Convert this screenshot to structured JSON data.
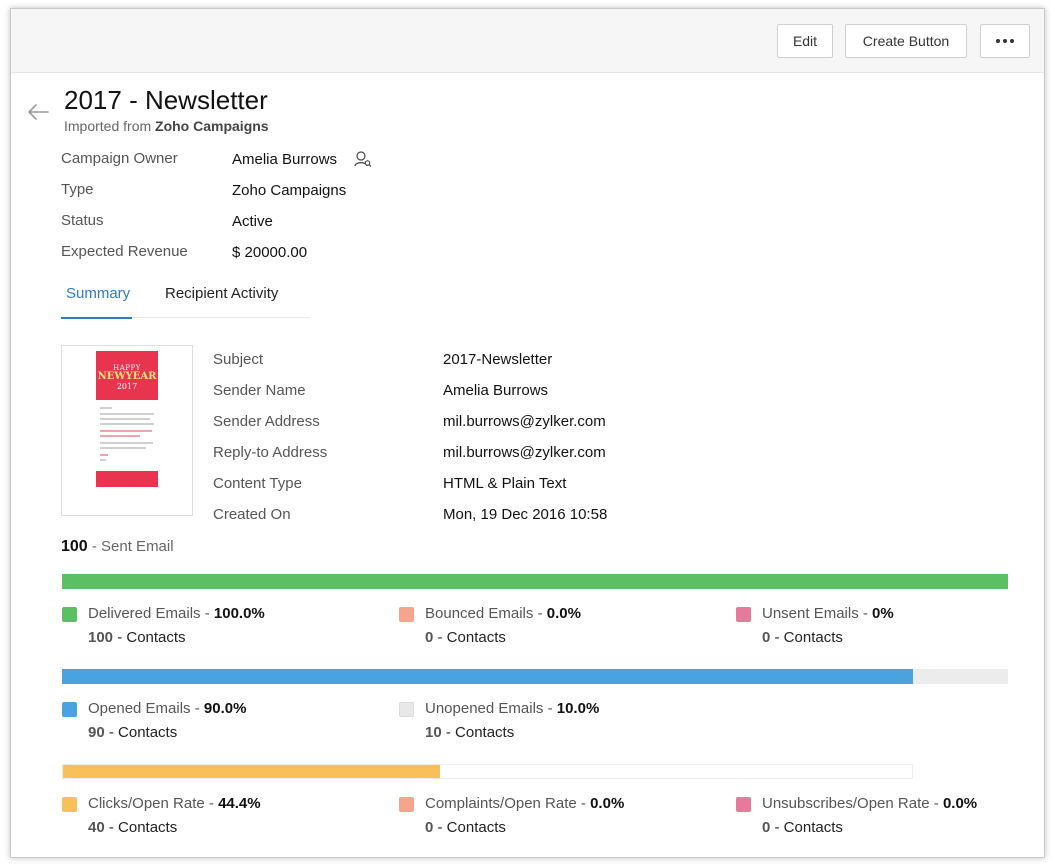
{
  "toolbar": {
    "edit_label": "Edit",
    "create_button_label": "Create Button",
    "more_icon": "more-horizontal-icon"
  },
  "header": {
    "title": "2017 - Newsletter",
    "imported_prefix": "Imported from",
    "imported_source": "Zoho Campaigns"
  },
  "details": [
    {
      "label": "Campaign Owner",
      "value": "Amelia Burrows"
    },
    {
      "label": "Type",
      "value": "Zoho Campaigns"
    },
    {
      "label": "Status",
      "value": "Active"
    },
    {
      "label": "Expected Revenue",
      "value": "$ 20000.00"
    }
  ],
  "tabs": [
    {
      "label": "Summary",
      "active": true
    },
    {
      "label": "Recipient Activity",
      "active": false
    }
  ],
  "thumbnail": {
    "line1": "HAPPY",
    "line2": "NEWYEAR",
    "line3": "2017"
  },
  "email_info": [
    {
      "label": "Subject",
      "value": "2017-Newsletter"
    },
    {
      "label": "Sender Name",
      "value": "Amelia Burrows"
    },
    {
      "label": "Sender Address",
      "value": "mil.burrows@zylker.com"
    },
    {
      "label": "Reply-to Address",
      "value": "mil.burrows@zylker.com"
    },
    {
      "label": "Content Type",
      "value": "HTML & Plain Text"
    },
    {
      "label": "Created On",
      "value": "Mon, 19 Dec 2016 10:58"
    }
  ],
  "sent": {
    "count": "100",
    "label": "- Sent Email"
  },
  "stats": {
    "delivery": {
      "fill_fraction": 1.0,
      "fill_color": "#5dbf63",
      "legend": [
        {
          "name": "Delivered Emails",
          "pct": "100.0%",
          "count": "100",
          "contacts": "- Contacts",
          "color": "#5dbf63"
        },
        {
          "name": "Bounced Emails",
          "pct": "0.0%",
          "count": "0",
          "contacts": "- Contacts",
          "color": "#f5a48d"
        },
        {
          "name": "Unsent Emails",
          "pct": "0%",
          "count": "0",
          "contacts": "- Contacts",
          "color": "#e67a9c"
        }
      ]
    },
    "opens": {
      "fill_fraction": 0.9,
      "fill_color": "#4aa3df",
      "legend": [
        {
          "name": "Opened Emails",
          "pct": "90.0%",
          "count": "90",
          "contacts": "- Contacts",
          "color": "#4aa3df"
        },
        {
          "name": "Unopened Emails",
          "pct": "10.0%",
          "count": "10",
          "contacts": "- Contacts",
          "color": "#e8e8e8"
        }
      ]
    },
    "clicks": {
      "fill_fraction": 0.444,
      "fill_color": "#f8bf5a",
      "legend": [
        {
          "name": "Clicks/Open Rate",
          "pct": "44.4%",
          "count": "40",
          "contacts": "- Contacts",
          "color": "#f8bf5a"
        },
        {
          "name": "Complaints/Open Rate",
          "pct": "0.0%",
          "count": "0",
          "contacts": "- Contacts",
          "color": "#f5a48d"
        },
        {
          "name": "Unsubscribes/Open Rate",
          "pct": "0.0%",
          "count": "0",
          "contacts": "- Contacts",
          "color": "#e67a9c"
        }
      ]
    }
  }
}
